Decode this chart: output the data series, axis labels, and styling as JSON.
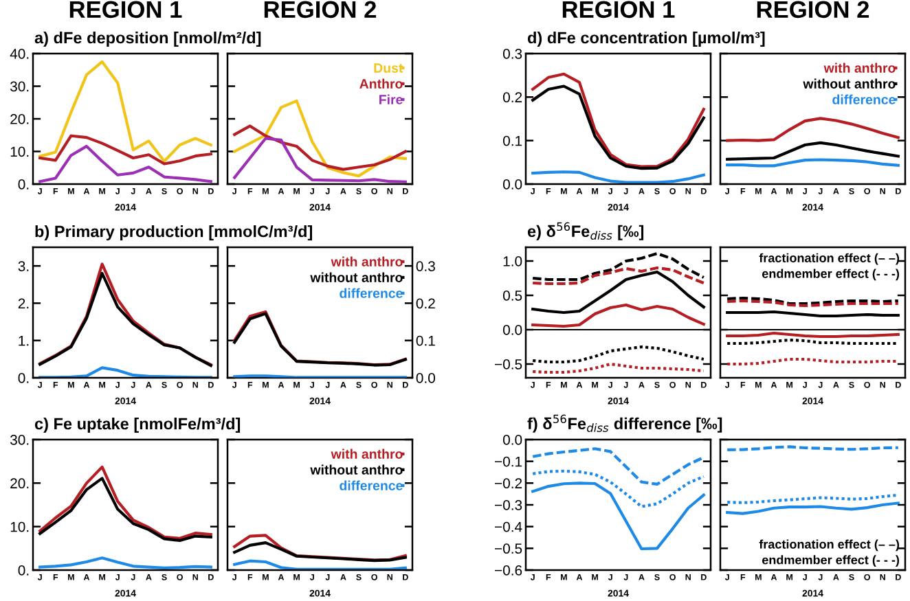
{
  "chart_data": [
    {
      "type": "line",
      "subtitle": "REGION 1",
      "title": "a) dFe deposition [nmol/m²/d]",
      "xlabel": "2014",
      "categories": [
        "J",
        "F",
        "M",
        "A",
        "M",
        "J",
        "J",
        "A",
        "S",
        "O",
        "N",
        "D"
      ],
      "ylim": [
        0,
        40
      ],
      "yticks": [
        {
          "value": 0,
          "label": "0."
        },
        {
          "value": 10,
          "label": "10."
        },
        {
          "value": 20,
          "label": "20."
        },
        {
          "value": 30,
          "label": "30."
        },
        {
          "value": 40,
          "label": "40."
        }
      ],
      "grid": false,
      "series": [
        {
          "color": "#f0c419",
          "values": [
            8.5,
            9.8,
            22,
            33.5,
            37.5,
            31,
            10.5,
            13.2,
            7,
            12,
            14,
            12
          ]
        },
        {
          "color": "#b51f24",
          "values": [
            8,
            7.3,
            14.8,
            14.3,
            12.5,
            10.3,
            8,
            9,
            6.2,
            7.1,
            8.6,
            9.2
          ]
        },
        {
          "color": "#9b30b5",
          "values": [
            0.8,
            1.8,
            8.8,
            11.6,
            7,
            2.8,
            3.4,
            5.2,
            2.2,
            1.8,
            1.4,
            0.8
          ]
        }
      ]
    },
    {
      "type": "line",
      "subtitle": "REGION 2",
      "xlabel": "2014",
      "categories": [
        "J",
        "F",
        "M",
        "A",
        "M",
        "J",
        "J",
        "A",
        "S",
        "O",
        "N",
        "D"
      ],
      "ylim": [
        0,
        40
      ],
      "yticks": [
        0,
        10,
        20,
        30,
        40
      ],
      "tick_labels": "x",
      "legend": "top right",
      "series": [
        {
          "name": "Dust",
          "color": "#f0c419",
          "values": [
            10,
            12.5,
            15,
            23.5,
            25.5,
            13,
            5,
            3.5,
            2.5,
            5.5,
            8.3,
            7.8
          ]
        },
        {
          "name": "Anthro",
          "color": "#b51f24",
          "values": [
            15.2,
            17.8,
            14.8,
            12.8,
            11.6,
            7.3,
            5.5,
            4.5,
            5.2,
            5.9,
            7.5,
            10
          ]
        },
        {
          "name": "Fire",
          "color": "#9b30b5",
          "values": [
            2,
            8,
            14,
            13.5,
            5.2,
            1.3,
            1.2,
            1.1,
            1.0,
            1.4,
            0.8,
            0.7
          ]
        }
      ]
    },
    {
      "type": "line",
      "subtitle": "REGION 1",
      "title": "d) dFe concentration [µmol/m³]",
      "xlabel": "2014",
      "categories": [
        "J",
        "F",
        "M",
        "A",
        "M",
        "J",
        "J",
        "A",
        "S",
        "O",
        "N",
        "D"
      ],
      "ylim": [
        0,
        0.3
      ],
      "yticks": [
        {
          "value": 0,
          "label": "0.0"
        },
        0.1,
        0.2,
        0.3
      ],
      "series": [
        {
          "color": "#b51f24",
          "values": [
            0.218,
            0.245,
            0.253,
            0.234,
            0.125,
            0.068,
            0.045,
            0.04,
            0.041,
            0.058,
            0.103,
            0.172
          ]
        },
        {
          "color": "#000000",
          "values": [
            0.193,
            0.218,
            0.225,
            0.207,
            0.11,
            0.06,
            0.041,
            0.036,
            0.037,
            0.053,
            0.093,
            0.152
          ]
        },
        {
          "color": "#1f8ae6",
          "values": [
            0.025,
            0.027,
            0.028,
            0.027,
            0.015,
            0.007,
            0.004,
            0.004,
            0.004,
            0.006,
            0.012,
            0.021
          ]
        }
      ]
    },
    {
      "type": "line",
      "subtitle": "REGION 2",
      "xlabel": "2014",
      "categories": [
        "J",
        "F",
        "M",
        "A",
        "M",
        "J",
        "J",
        "A",
        "S",
        "O",
        "N",
        "D"
      ],
      "ylim": [
        0,
        0.3
      ],
      "yticks": [
        0.0,
        0.1,
        0.2,
        0.3
      ],
      "tick_labels": "x",
      "legend": "top right",
      "series": [
        {
          "name": "with anthro",
          "color": "#b51f24",
          "values": [
            0.1,
            0.101,
            0.1,
            0.102,
            0.125,
            0.145,
            0.151,
            0.146,
            0.138,
            0.128,
            0.117,
            0.107
          ]
        },
        {
          "name": "without anthro",
          "color": "#000000",
          "values": [
            0.057,
            0.058,
            0.059,
            0.06,
            0.075,
            0.09,
            0.095,
            0.09,
            0.083,
            0.076,
            0.07,
            0.064
          ]
        },
        {
          "name": "difference",
          "color": "#1f8ae6",
          "values": [
            0.044,
            0.044,
            0.042,
            0.042,
            0.049,
            0.055,
            0.056,
            0.055,
            0.054,
            0.051,
            0.046,
            0.043
          ]
        }
      ]
    },
    {
      "type": "line",
      "title": "b) Primary production [mmolC/m³/d]",
      "xlabel": "2014",
      "categories": [
        "J",
        "F",
        "M",
        "A",
        "M",
        "J",
        "J",
        "A",
        "S",
        "O",
        "N",
        "D"
      ],
      "ylim": [
        0,
        3.5
      ],
      "yticks": [
        {
          "value": 0,
          "label": "0."
        },
        {
          "value": 1,
          "label": "1."
        },
        {
          "value": 2,
          "label": "2."
        },
        {
          "value": 3,
          "label": "3."
        }
      ],
      "series": [
        {
          "color": "#b51f24",
          "values": [
            0.38,
            0.6,
            0.85,
            1.65,
            3.05,
            2.1,
            1.52,
            1.2,
            0.9,
            0.8,
            0.55,
            0.35
          ]
        },
        {
          "color": "#000000",
          "values": [
            0.36,
            0.58,
            0.83,
            1.6,
            2.8,
            1.9,
            1.45,
            1.15,
            0.88,
            0.8,
            0.55,
            0.33
          ]
        },
        {
          "color": "#1f8ae6",
          "values": [
            0.01,
            0.01,
            0.02,
            0.05,
            0.27,
            0.2,
            0.07,
            0.04,
            0.03,
            0.02,
            0.01,
            0.01
          ]
        }
      ]
    },
    {
      "type": "line",
      "xlabel": "2014",
      "categories": [
        "J",
        "F",
        "M",
        "A",
        "M",
        "J",
        "J",
        "A",
        "S",
        "O",
        "N",
        "D"
      ],
      "y2lim": [
        0,
        0.35
      ],
      "y2ticks": [
        {
          "value": 0,
          "label": "0.0"
        },
        0.1,
        0.2,
        0.3
      ],
      "legend": "top right",
      "series": [
        {
          "name": "with anthro",
          "color": "#b51f24",
          "axis": "y2",
          "values": [
            0.1,
            0.165,
            0.177,
            0.087,
            0.045,
            0.043,
            0.041,
            0.04,
            0.038,
            0.035,
            0.036,
            0.05
          ]
        },
        {
          "name": "without anthro",
          "color": "#000000",
          "axis": "y2",
          "values": [
            0.095,
            0.158,
            0.172,
            0.085,
            0.044,
            0.042,
            0.04,
            0.039,
            0.037,
            0.034,
            0.035,
            0.049
          ]
        },
        {
          "name": "difference",
          "color": "#1f8ae6",
          "axis": "y2",
          "values": [
            0.003,
            0.005,
            0.005,
            0.003,
            0.001,
            0.001,
            0.001,
            0.001,
            0.001,
            0.001,
            0.001,
            0.001
          ]
        }
      ]
    },
    {
      "type": "line",
      "title": "e) δ$^{56}$Fe$_{diss}$ [‰]",
      "xlabel": "2014",
      "categories": [
        "J",
        "F",
        "M",
        "A",
        "M",
        "J",
        "J",
        "A",
        "S",
        "O",
        "N",
        "D"
      ],
      "ylim": [
        -0.7,
        1.2
      ],
      "yticks": [
        {
          "value": -0.5,
          "label": "−0.5"
        },
        {
          "value": 0,
          "label": "0.0"
        },
        0.5,
        {
          "value": 1,
          "label": "1.0"
        }
      ],
      "ref_lines": [
        {
          "axis": "y",
          "value": 0,
          "color": "#000000"
        }
      ],
      "series": [
        {
          "color": "#000000",
          "line_style": "dashed",
          "values": [
            0.75,
            0.73,
            0.73,
            0.73,
            0.82,
            0.87,
            1.0,
            1.04,
            1.11,
            1.03,
            0.88,
            0.76
          ]
        },
        {
          "color": "#b51f24",
          "line_style": "dashed",
          "values": [
            0.68,
            0.67,
            0.67,
            0.68,
            0.79,
            0.83,
            0.89,
            0.85,
            0.9,
            0.87,
            0.77,
            0.68
          ]
        },
        {
          "color": "#000000",
          "line_style": "solid",
          "values": [
            0.3,
            0.27,
            0.25,
            0.27,
            0.42,
            0.57,
            0.73,
            0.79,
            0.84,
            0.7,
            0.5,
            0.33
          ]
        },
        {
          "color": "#b51f24",
          "line_style": "solid",
          "values": [
            0.07,
            0.06,
            0.05,
            0.07,
            0.23,
            0.32,
            0.36,
            0.29,
            0.34,
            0.3,
            0.18,
            0.08
          ]
        },
        {
          "color": "#000000",
          "line_style": "dotted",
          "values": [
            -0.45,
            -0.47,
            -0.47,
            -0.45,
            -0.39,
            -0.31,
            -0.28,
            -0.25,
            -0.27,
            -0.32,
            -0.38,
            -0.43
          ]
        },
        {
          "color": "#b51f24",
          "line_style": "dotted",
          "values": [
            -0.61,
            -0.62,
            -0.62,
            -0.6,
            -0.56,
            -0.5,
            -0.53,
            -0.56,
            -0.56,
            -0.57,
            -0.58,
            -0.6
          ]
        }
      ]
    },
    {
      "type": "line",
      "xlabel": "2014",
      "categories": [
        "J",
        "F",
        "M",
        "A",
        "M",
        "J",
        "J",
        "A",
        "S",
        "O",
        "N",
        "D"
      ],
      "ylim": [
        -0.7,
        1.2
      ],
      "yticks": [
        -0.5,
        0.0,
        0.5,
        1.0
      ],
      "tick_labels": "x",
      "ref_lines": [
        {
          "axis": "y",
          "value": 0,
          "color": "#000000"
        }
      ],
      "annotations": [
        "fractionation effect (– –)",
        "endmember effect (- - -)"
      ],
      "series": [
        {
          "color": "#000000",
          "line_style": "dashed",
          "values": [
            0.45,
            0.46,
            0.45,
            0.43,
            0.38,
            0.38,
            0.39,
            0.41,
            0.42,
            0.42,
            0.41,
            0.42
          ]
        },
        {
          "color": "#b51f24",
          "line_style": "dashed",
          "values": [
            0.41,
            0.42,
            0.41,
            0.4,
            0.36,
            0.35,
            0.36,
            0.37,
            0.38,
            0.38,
            0.38,
            0.38
          ]
        },
        {
          "color": "#000000",
          "line_style": "solid",
          "values": [
            0.25,
            0.25,
            0.25,
            0.26,
            0.24,
            0.22,
            0.2,
            0.2,
            0.21,
            0.22,
            0.21,
            0.21
          ]
        },
        {
          "color": "#b51f24",
          "line_style": "solid",
          "values": [
            -0.09,
            -0.09,
            -0.08,
            -0.05,
            -0.07,
            -0.09,
            -0.1,
            -0.1,
            -0.09,
            -0.09,
            -0.08,
            -0.07
          ]
        },
        {
          "color": "#000000",
          "line_style": "dotted",
          "values": [
            -0.2,
            -0.2,
            -0.19,
            -0.17,
            -0.15,
            -0.16,
            -0.19,
            -0.19,
            -0.2,
            -0.2,
            -0.2,
            -0.2
          ]
        },
        {
          "color": "#b51f24",
          "line_style": "dotted",
          "values": [
            -0.5,
            -0.5,
            -0.49,
            -0.46,
            -0.43,
            -0.43,
            -0.45,
            -0.47,
            -0.47,
            -0.47,
            -0.46,
            -0.46
          ]
        }
      ]
    },
    {
      "type": "line",
      "title": "c) Fe uptake [nmolFe/m³/d]",
      "xlabel": "2014",
      "categories": [
        "J",
        "F",
        "M",
        "A",
        "M",
        "J",
        "J",
        "A",
        "S",
        "O",
        "N",
        "D"
      ],
      "ylim": [
        0,
        30
      ],
      "yticks": [
        {
          "value": 0,
          "label": "0."
        },
        {
          "value": 10,
          "label": "10."
        },
        {
          "value": 20,
          "label": "20."
        },
        {
          "value": 30,
          "label": "30."
        }
      ],
      "series": [
        {
          "color": "#b51f24",
          "values": [
            9,
            12,
            14.7,
            20,
            23.7,
            15.8,
            11.5,
            9.8,
            7.6,
            7.3,
            8.5,
            8.2
          ]
        },
        {
          "color": "#000000",
          "values": [
            8.4,
            11,
            13.7,
            18.5,
            21.1,
            14,
            10.7,
            9.3,
            7.2,
            6.8,
            7.8,
            7.6
          ]
        },
        {
          "color": "#1f8ae6",
          "values": [
            0.7,
            0.9,
            1.2,
            1.9,
            2.8,
            1.8,
            0.9,
            0.7,
            0.5,
            0.6,
            0.8,
            0.7
          ]
        }
      ]
    },
    {
      "type": "line",
      "xlabel": "2014",
      "categories": [
        "J",
        "F",
        "M",
        "A",
        "M",
        "J",
        "J",
        "A",
        "S",
        "O",
        "N",
        "D"
      ],
      "ylim": [
        0,
        30
      ],
      "yticks": [
        0,
        10,
        20,
        30
      ],
      "tick_labels": "x",
      "legend": "top right",
      "series": [
        {
          "name": "with anthro",
          "color": "#b51f24",
          "values": [
            5.4,
            7.8,
            8.0,
            5.1,
            3.3,
            3.1,
            2.9,
            2.7,
            2.5,
            2.3,
            2.4,
            3.3
          ]
        },
        {
          "name": "without anthro",
          "color": "#000000",
          "values": [
            4.1,
            5.7,
            6.3,
            4.8,
            3.2,
            3.0,
            2.8,
            2.6,
            2.4,
            2.2,
            2.3,
            2.9
          ]
        },
        {
          "name": "difference",
          "color": "#1f8ae6",
          "values": [
            1.3,
            2.1,
            1.9,
            0.6,
            0.2,
            0.2,
            0.2,
            0.2,
            0.2,
            0.2,
            0.2,
            0.5
          ]
        }
      ]
    },
    {
      "type": "line",
      "title": "f) δ$^{56}$Fe$_{diss}$ difference [‰]",
      "xlabel": "2014",
      "categories": [
        "J",
        "F",
        "M",
        "A",
        "M",
        "J",
        "J",
        "A",
        "S",
        "O",
        "N",
        "D"
      ],
      "ylim": [
        -0.6,
        0.0
      ],
      "yticks": [
        {
          "value": -0.6,
          "label": "−0.6"
        },
        {
          "value": -0.5,
          "label": "−0.5"
        },
        {
          "value": -0.4,
          "label": "−0.4"
        },
        {
          "value": -0.3,
          "label": "−0.3"
        },
        {
          "value": -0.2,
          "label": "−0.2"
        },
        {
          "value": -0.1,
          "label": "−0.1"
        },
        {
          "value": 0,
          "label": "0.0"
        }
      ],
      "series": [
        {
          "color": "#1f8ae6",
          "line_style": "dashed",
          "values": [
            -0.078,
            -0.065,
            -0.057,
            -0.05,
            -0.042,
            -0.055,
            -0.125,
            -0.195,
            -0.205,
            -0.16,
            -0.115,
            -0.082
          ]
        },
        {
          "color": "#1f8ae6",
          "line_style": "dotted",
          "values": [
            -0.157,
            -0.147,
            -0.145,
            -0.148,
            -0.16,
            -0.195,
            -0.25,
            -0.308,
            -0.295,
            -0.25,
            -0.2,
            -0.17
          ]
        },
        {
          "color": "#1f8ae6",
          "line_style": "solid",
          "values": [
            -0.238,
            -0.215,
            -0.203,
            -0.2,
            -0.202,
            -0.248,
            -0.375,
            -0.502,
            -0.5,
            -0.41,
            -0.315,
            -0.255
          ]
        }
      ]
    },
    {
      "type": "line",
      "xlabel": "2014",
      "categories": [
        "J",
        "F",
        "M",
        "A",
        "M",
        "J",
        "J",
        "A",
        "S",
        "O",
        "N",
        "D"
      ],
      "ylim": [
        -0.6,
        0.0
      ],
      "yticks": [
        -0.6,
        -0.5,
        -0.4,
        -0.3,
        -0.2,
        -0.1,
        0.0
      ],
      "tick_labels": "x",
      "annotations": [
        "fractionation effect (– –)",
        "endmember effect (- - -)"
      ],
      "series": [
        {
          "color": "#1f8ae6",
          "line_style": "dashed",
          "values": [
            -0.047,
            -0.046,
            -0.042,
            -0.036,
            -0.033,
            -0.038,
            -0.04,
            -0.043,
            -0.045,
            -0.042,
            -0.038,
            -0.037
          ]
        },
        {
          "color": "#1f8ae6",
          "line_style": "dotted",
          "values": [
            -0.288,
            -0.29,
            -0.287,
            -0.281,
            -0.277,
            -0.272,
            -0.267,
            -0.27,
            -0.274,
            -0.271,
            -0.262,
            -0.255
          ]
        },
        {
          "color": "#1f8ae6",
          "line_style": "solid",
          "values": [
            -0.335,
            -0.34,
            -0.33,
            -0.315,
            -0.31,
            -0.31,
            -0.308,
            -0.315,
            -0.32,
            -0.313,
            -0.3,
            -0.292
          ]
        }
      ]
    }
  ]
}
